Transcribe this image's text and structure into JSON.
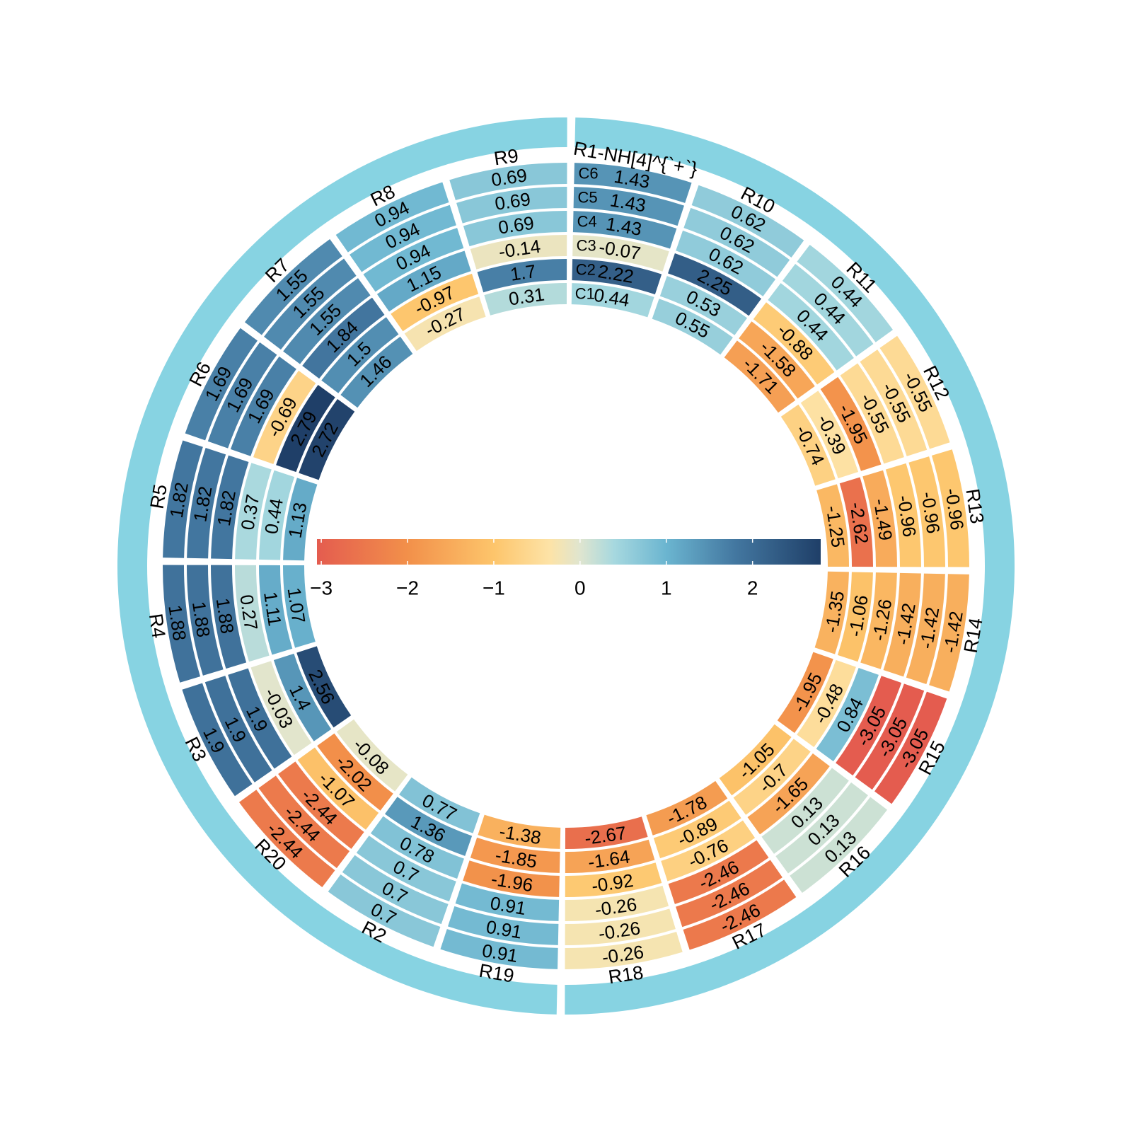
{
  "chart_data": {
    "type": "heatmap",
    "layout": "circular",
    "columns": [
      "C1",
      "C2",
      "C3",
      "C4",
      "C5",
      "C6"
    ],
    "sectors": [
      {
        "label": "R1-NH[4]^{`+`}",
        "values": [
          0.44,
          2.22,
          -0.07,
          1.43,
          1.43,
          1.43
        ]
      },
      {
        "label": "R10",
        "values": [
          0.55,
          0.53,
          2.25,
          0.62,
          0.62,
          0.62
        ]
      },
      {
        "label": "R11",
        "values": [
          -1.71,
          -1.58,
          -0.88,
          0.44,
          0.44,
          0.44
        ]
      },
      {
        "label": "R12",
        "values": [
          -0.74,
          -0.39,
          -1.95,
          -0.55,
          -0.55,
          -0.55
        ]
      },
      {
        "label": "R13",
        "values": [
          -1.25,
          -2.62,
          -1.49,
          -0.96,
          -0.96,
          -0.96
        ]
      },
      {
        "label": "R14",
        "values": [
          -1.35,
          -1.06,
          -1.26,
          -1.42,
          -1.42,
          -1.42
        ]
      },
      {
        "label": "R15",
        "values": [
          -1.95,
          -0.48,
          0.84,
          -3.05,
          -3.05,
          -3.05
        ]
      },
      {
        "label": "R16",
        "values": [
          -1.05,
          -0.7,
          -1.65,
          0.13,
          0.13,
          0.13
        ]
      },
      {
        "label": "R17",
        "values": [
          -1.78,
          -0.89,
          -0.76,
          -2.46,
          -2.46,
          -2.46
        ]
      },
      {
        "label": "R18",
        "values": [
          -2.67,
          -1.64,
          -0.92,
          -0.26,
          -0.26,
          -0.26
        ]
      },
      {
        "label": "R19",
        "values": [
          -1.38,
          -1.85,
          -1.96,
          0.91,
          0.91,
          0.91
        ]
      },
      {
        "label": "R2",
        "values": [
          0.77,
          1.36,
          0.78,
          0.7,
          0.7,
          0.7
        ]
      },
      {
        "label": "R20",
        "values": [
          -0.08,
          -2.02,
          -1.07,
          -2.44,
          -2.44,
          -2.44
        ]
      },
      {
        "label": "R3",
        "values": [
          2.56,
          1.4,
          -0.03,
          1.9,
          1.9,
          1.9
        ]
      },
      {
        "label": "R4",
        "values": [
          1.07,
          1.11,
          0.27,
          1.88,
          1.88,
          1.88
        ]
      },
      {
        "label": "R5",
        "values": [
          1.13,
          0.44,
          0.37,
          1.82,
          1.82,
          1.82
        ]
      },
      {
        "label": "R6",
        "values": [
          2.72,
          2.79,
          -0.69,
          1.69,
          1.69,
          1.69
        ]
      },
      {
        "label": "R7",
        "values": [
          1.46,
          1.5,
          1.84,
          1.55,
          1.55,
          1.55
        ]
      },
      {
        "label": "R8",
        "values": [
          -0.27,
          -0.97,
          1.15,
          0.94,
          0.94,
          0.94
        ]
      },
      {
        "label": "R9",
        "values": [
          0.31,
          1.7,
          -0.14,
          0.69,
          0.69,
          0.69
        ]
      }
    ],
    "outer_groups": [
      {
        "from": 0,
        "to": 9,
        "color": "#87d3e2"
      },
      {
        "from": 10,
        "to": 19,
        "color": "#87d3e2"
      }
    ],
    "colorbar": {
      "ticks": [
        -3,
        -2,
        -1,
        0,
        1,
        2
      ],
      "range": [
        -3.05,
        2.79
      ],
      "orientation": "horizontal",
      "position": "center"
    },
    "color_scale": [
      {
        "value": -3.05,
        "color": "#e45c4f"
      },
      {
        "value": -2.0,
        "color": "#f2904a"
      },
      {
        "value": -1.0,
        "color": "#fdc56b"
      },
      {
        "value": -0.35,
        "color": "#fde3a7"
      },
      {
        "value": 0.0,
        "color": "#dfe5cf"
      },
      {
        "value": 0.4,
        "color": "#a6d8df"
      },
      {
        "value": 1.0,
        "color": "#6bb5d0"
      },
      {
        "value": 1.8,
        "color": "#4377a0"
      },
      {
        "value": 2.79,
        "color": "#1f3f68"
      }
    ]
  }
}
